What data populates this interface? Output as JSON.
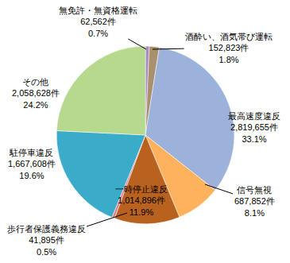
{
  "chart_data": {
    "type": "pie",
    "categories": [
      "無免許・無資格運転",
      "酒酔い、酒気帯び運転",
      "最高速度違反",
      "信号無視",
      "一時停止違反",
      "歩行者保護義務違反",
      "駐停車違反",
      "その他"
    ],
    "values": [
      0.7,
      1.8,
      33.1,
      8.1,
      11.9,
      0.5,
      19.6,
      24.2
    ],
    "value_labels": [
      "0.7%",
      "1.8%",
      "33.1%",
      "8.1%",
      "11.9%",
      "0.5%",
      "19.6%",
      "24.2%"
    ],
    "counts": [
      62562,
      152823,
      2819655,
      687852,
      1014896,
      41895,
      1667608,
      2058628
    ],
    "count_labels": [
      "62,562件",
      "152,823件",
      "2,819,655件",
      "687,852件",
      "1,014,896件",
      "41,895件",
      "1,667,608件",
      "2,058,628件"
    ],
    "colors": [
      "#a98bc9",
      "#a8916c",
      "#9db2da",
      "#ffb25e",
      "#b9621f",
      "#e57f8e",
      "#3aabc8",
      "#b6d98e"
    ],
    "data_labels": true
  }
}
